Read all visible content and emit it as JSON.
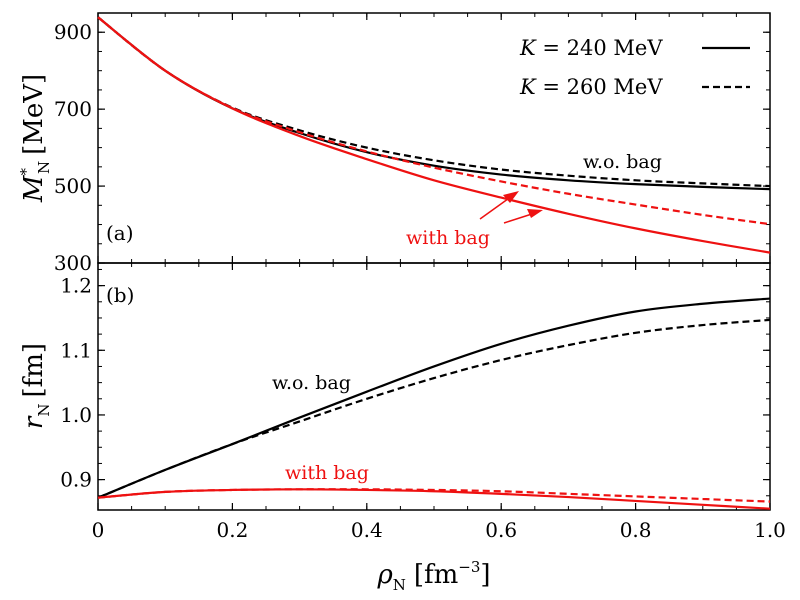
{
  "chart_data": [
    {
      "type": "line",
      "panel": "(a)",
      "ylabel_main": "M",
      "ylabel_sup": "*",
      "ylabel_sub": "N",
      "ylabel_unit": "[MeV]",
      "xlim": [
        0,
        1.0
      ],
      "ylim": [
        300,
        950
      ],
      "yticks": [
        300,
        500,
        700,
        900
      ],
      "yticks_labels": [
        "300",
        "500",
        "700",
        "900"
      ],
      "legend": [
        {
          "italic": "K",
          "rest": " = 240 MeV",
          "style": "solid"
        },
        {
          "italic": "K",
          "rest": " = 260 MeV",
          "style": "dashed"
        }
      ],
      "annotations": {
        "without_bag": "w.o. bag",
        "with_bag": "with bag"
      },
      "x": [
        0,
        0.1,
        0.2,
        0.3,
        0.4,
        0.5,
        0.6,
        0.7,
        0.8,
        0.9,
        1.0
      ],
      "series": [
        {
          "name": "w.o. bag, K = 240 MeV",
          "color": "#000000",
          "style": "solid",
          "values": [
            939,
            800,
            702,
            638,
            588,
            553,
            530,
            515,
            505,
            498,
            492
          ]
        },
        {
          "name": "w.o. bag, K = 260 MeV",
          "color": "#000000",
          "style": "dashed",
          "values": [
            939,
            800,
            704,
            645,
            600,
            567,
            543,
            527,
            515,
            507,
            500
          ]
        },
        {
          "name": "with bag, K = 240 MeV",
          "color": "#ee1111",
          "style": "solid",
          "values": [
            939,
            800,
            702,
            630,
            570,
            515,
            470,
            428,
            390,
            357,
            327
          ]
        },
        {
          "name": "with bag, K = 260 MeV",
          "color": "#ee1111",
          "style": "dashed",
          "values": [
            939,
            800,
            703,
            640,
            590,
            548,
            512,
            480,
            452,
            425,
            401
          ]
        }
      ]
    },
    {
      "type": "line",
      "panel": "(b)",
      "ylabel_main": "r",
      "ylabel_sub": "N",
      "ylabel_unit": "[fm]",
      "xlabel_main": "ρ",
      "xlabel_sub": "N",
      "xlabel_unit_base": "[fm",
      "xlabel_unit_sup": "−3",
      "xlabel_unit_end": "]",
      "xlim": [
        0,
        1.0
      ],
      "ylim": [
        0.853,
        1.235
      ],
      "xticks": [
        0,
        0.2,
        0.4,
        0.6,
        0.8,
        1.0
      ],
      "xticks_labels": [
        "0",
        "0.2",
        "0.4",
        "0.6",
        "0.8",
        "1.0"
      ],
      "yticks": [
        0.9,
        1.0,
        1.1,
        1.2
      ],
      "yticks_labels": [
        "0.9",
        "1.0",
        "1.1",
        "1.2"
      ],
      "annotations": {
        "without_bag": "w.o. bag",
        "with_bag": "with bag"
      },
      "x": [
        0,
        0.1,
        0.2,
        0.3,
        0.4,
        0.5,
        0.6,
        0.7,
        0.8,
        0.9,
        1.0
      ],
      "series": [
        {
          "name": "w.o. bag, K = 240 MeV",
          "color": "#000000",
          "style": "solid",
          "values": [
            0.872,
            0.915,
            0.955,
            0.996,
            1.036,
            1.075,
            1.11,
            1.138,
            1.16,
            1.172,
            1.18
          ]
        },
        {
          "name": "w.o. bag, K = 260 MeV",
          "color": "#000000",
          "style": "dashed",
          "values": [
            0.872,
            0.915,
            0.955,
            0.99,
            1.025,
            1.057,
            1.085,
            1.108,
            1.127,
            1.139,
            1.147
          ]
        },
        {
          "name": "with bag, K = 240 MeV",
          "color": "#ee1111",
          "style": "solid",
          "values": [
            0.872,
            0.881,
            0.884,
            0.885,
            0.884,
            0.882,
            0.878,
            0.873,
            0.867,
            0.861,
            0.855
          ]
        },
        {
          "name": "with bag, K = 260 MeV",
          "color": "#ee1111",
          "style": "dashed",
          "values": [
            0.872,
            0.881,
            0.884,
            0.885,
            0.885,
            0.884,
            0.882,
            0.878,
            0.874,
            0.87,
            0.866
          ]
        }
      ]
    }
  ]
}
